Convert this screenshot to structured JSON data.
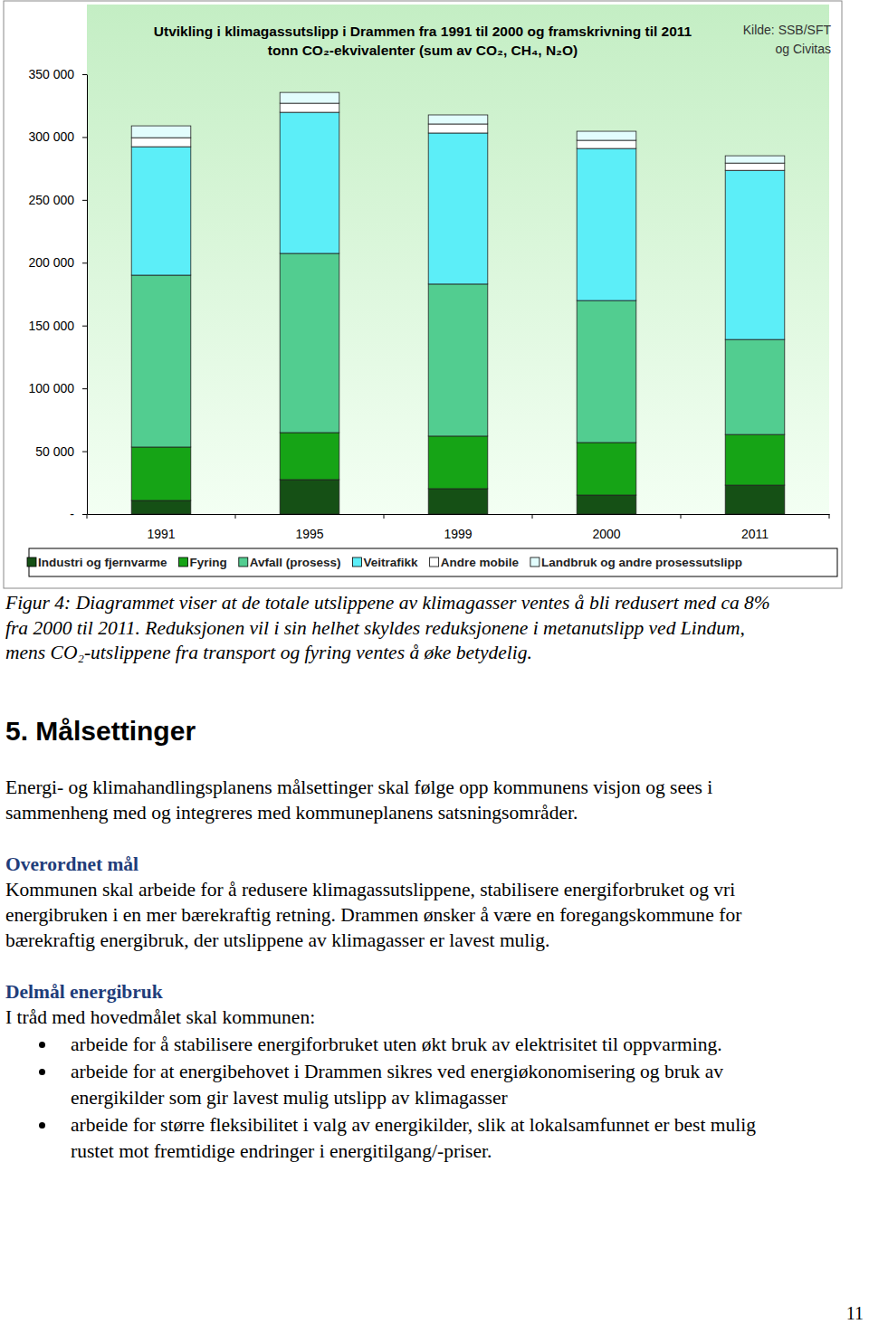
{
  "chart_data": {
    "type": "bar",
    "stacked": true,
    "title": "Utvikling i klimagassutslipp i Drammen fra 1991 til 2000 og framskrivning til 2011",
    "subtitle": "tonn CO₂-ekvivalenter (sum av CO₂, CH₄, N₂O)",
    "annotations": [
      "Kilde: SSB/SFT",
      "og Civitas"
    ],
    "categories": [
      "1991",
      "1995",
      "1999",
      "2000",
      "2011"
    ],
    "series": [
      {
        "name": "Industri og fjernvarme",
        "color": "#155015",
        "values": [
          10800,
          27400,
          20200,
          15100,
          23000
        ]
      },
      {
        "name": "Fyring",
        "color": "#16a416",
        "values": [
          42500,
          37400,
          41800,
          41800,
          40300
        ]
      },
      {
        "name": "Avfall (prosess)",
        "color": "#52cd90",
        "values": [
          136800,
          142600,
          121000,
          113000,
          75600
        ]
      },
      {
        "name": "Veitrafikk",
        "color": "#5ceef8",
        "values": [
          102200,
          112300,
          120200,
          121000,
          134600
        ]
      },
      {
        "name": "Andre mobile",
        "color": "#ffffff",
        "values": [
          7200,
          7200,
          7200,
          6500,
          5800
        ]
      },
      {
        "name": "Landbruk og andre prosessutslipp",
        "color": "#e2fdfd",
        "values": [
          9400,
          8600,
          7200,
          7200,
          5800
        ]
      }
    ],
    "ylim": [
      0,
      350000
    ],
    "yticks": [
      {
        "value": 0,
        "label": "-"
      },
      {
        "value": 50000,
        "label": "50 000"
      },
      {
        "value": 100000,
        "label": "100 000"
      },
      {
        "value": 150000,
        "label": "150 000"
      },
      {
        "value": 200000,
        "label": "200 000"
      },
      {
        "value": 250000,
        "label": "250 000"
      },
      {
        "value": 300000,
        "label": "300 000"
      },
      {
        "value": 350000,
        "label": "350 000"
      }
    ],
    "grid": false,
    "legend": "bottom"
  },
  "document": {
    "caption": [
      "Figur 4: Diagrammet viser at de totale utslippene av klimagasser ventes å bli redusert med ca 8%",
      "fra 2000 til 2011. Reduksjonen vil i sin helhet skyldes reduksjonene i metanutslipp ved Lindum,",
      "mens CO₂-utslippene fra transport og fyring ventes å øke betydelig."
    ],
    "heading": "5. Målsettinger",
    "intro": [
      "Energi- og klimahandlingsplanens målsettinger skal følge opp kommunens visjon og sees i",
      "sammenheng med og integreres med kommuneplanens satsningsområder."
    ],
    "sections": [
      {
        "title": "Overordnet mål",
        "lines": [
          "Kommunen skal arbeide for å redusere klimagassutslippene, stabilisere energiforbruket og vri",
          "energibruken i en mer bærekraftig retning. Drammen ønsker å være en foregangskommune for",
          "bærekraftig energibruk, der utslippene av klimagasser er lavest mulig."
        ],
        "bullets": []
      },
      {
        "title": "Delmål energibruk",
        "lines": [
          "I tråd med hovedmålet skal kommunen:"
        ],
        "bullets": [
          [
            "arbeide for å stabilisere energiforbruket uten økt bruk av elektrisitet til oppvarming."
          ],
          [
            "arbeide for at energibehovet i Drammen sikres ved energiøkonomisering og bruk av",
            "energikilder som gir lavest mulig utslipp av klimagasser"
          ],
          [
            "arbeide for større fleksibilitet i valg av energikilder, slik at lokalsamfunnet er best mulig",
            "rustet mot fremtidige endringer i energitilgang/-priser."
          ]
        ]
      }
    ],
    "page_number": "11"
  }
}
